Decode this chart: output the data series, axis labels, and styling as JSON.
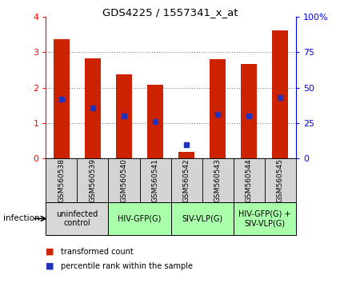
{
  "title": "GDS4225 / 1557341_x_at",
  "samples": [
    "GSM560538",
    "GSM560539",
    "GSM560540",
    "GSM560541",
    "GSM560542",
    "GSM560543",
    "GSM560544",
    "GSM560545"
  ],
  "transformed_counts": [
    3.38,
    2.82,
    2.37,
    2.09,
    0.18,
    2.8,
    2.68,
    3.62
  ],
  "percentile_ranks": [
    42,
    36,
    30,
    26,
    10,
    31,
    30,
    43
  ],
  "left_ylim": [
    0,
    4
  ],
  "left_yticks": [
    0,
    1,
    2,
    3,
    4
  ],
  "right_yticks": [
    0,
    25,
    50,
    75,
    100
  ],
  "right_yticklabels": [
    "0",
    "25",
    "50",
    "75",
    "100%"
  ],
  "bar_color": "#cc2200",
  "blue_color": "#2233bb",
  "group_ranges": [
    [
      0,
      1
    ],
    [
      2,
      3
    ],
    [
      4,
      5
    ],
    [
      6,
      7
    ]
  ],
  "group_labels": [
    "uninfected\ncontrol",
    "HIV-GFP(G)",
    "SIV-VLP(G)",
    "HIV-GFP(G) +\nSIV-VLP(G)"
  ],
  "group_colors": [
    "#d8d8d8",
    "#aaffaa",
    "#aaffaa",
    "#aaffaa"
  ],
  "sample_cell_color": "#d4d4d4",
  "infection_label": "infection",
  "legend_red_label": "transformed count",
  "legend_blue_label": "percentile rank within the sample"
}
